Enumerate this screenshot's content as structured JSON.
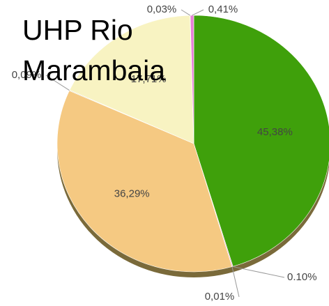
{
  "chart_data": {
    "type": "pie",
    "title": "UHP Rio Marambaia",
    "categories": [
      null,
      null,
      null,
      null,
      null,
      null,
      null,
      null
    ],
    "values": [
      45.38,
      0.1,
      0.01,
      36.29,
      0.09,
      17.71,
      0.03,
      0.41
    ],
    "value_labels": [
      "45,38%",
      "0.10%",
      "0,01%",
      "36,29%",
      "0,09%",
      "17,71%",
      "0,03%",
      "0,41%"
    ],
    "colors": [
      "#3fa00b",
      "#e58fc0",
      "#c9a0a0",
      "#f5c982",
      "#e0d7a8",
      "#f8f3c2",
      "#f0e0e8",
      "#e77fd8"
    ]
  }
}
